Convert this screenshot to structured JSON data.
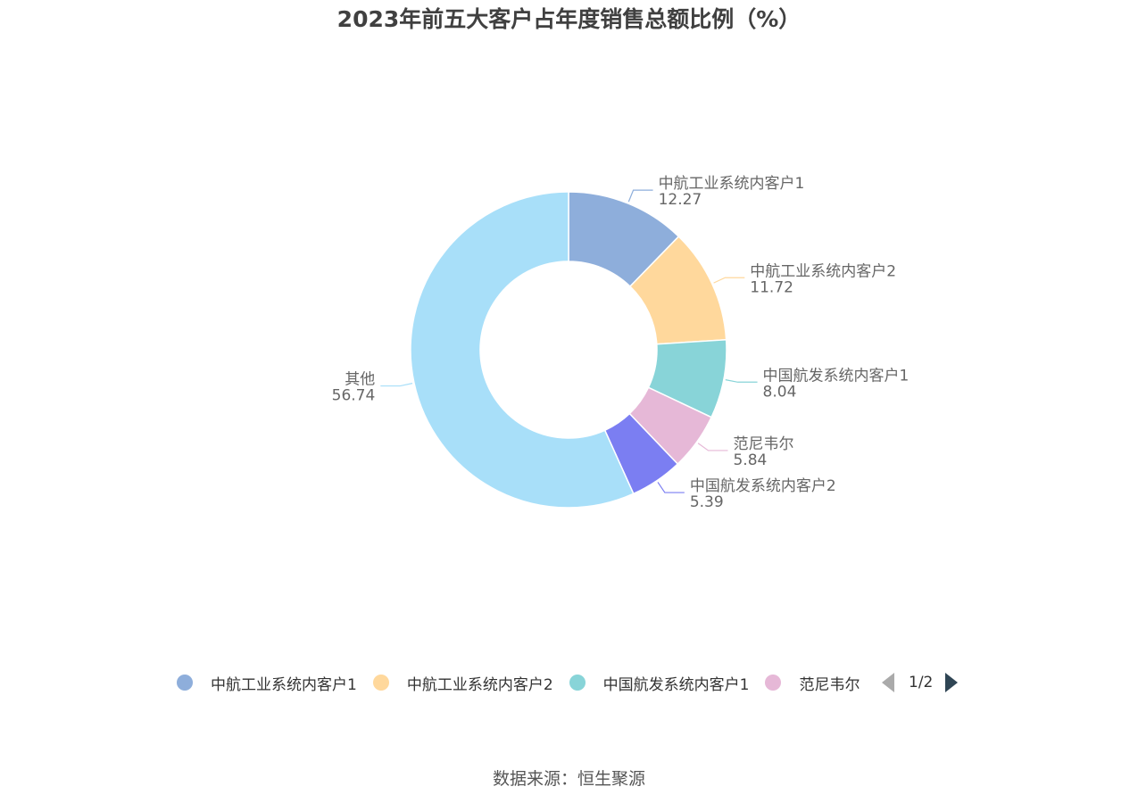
{
  "title": "2023年前五大客户占年度销售总额比例（%）",
  "source": "数据来源：恒生聚源",
  "pager": {
    "text": "1/2",
    "prev": "arrow-left-icon",
    "next": "arrow-right-icon"
  },
  "legend": {
    "items": [
      {
        "label": "中航工业系统内客户1",
        "color": "#8eaedb"
      },
      {
        "label": "中航工业系统内客户2",
        "color": "#ffd89c"
      },
      {
        "label": "中国航发系统内客户1",
        "color": "#88d4d8"
      },
      {
        "label": "范尼韦尔",
        "color": "#e6b8d7"
      }
    ]
  },
  "chart_data": {
    "type": "pie",
    "donut": true,
    "title": "2023年前五大客户占年度销售总额比例（%）",
    "slices": [
      {
        "name": "中航工业系统内客户1",
        "value": 12.27,
        "label": "12.27",
        "color": "#8eaedb"
      },
      {
        "name": "中航工业系统内客户2",
        "value": 11.72,
        "label": "11.72",
        "color": "#ffd89c"
      },
      {
        "name": "中国航发系统内客户1",
        "value": 8.04,
        "label": "8.04",
        "color": "#88d4d8"
      },
      {
        "name": "范尼韦尔",
        "value": 5.84,
        "label": "5.84",
        "color": "#e6b8d7"
      },
      {
        "name": "中国航发系统内客户2",
        "value": 5.39,
        "label": "5.39",
        "color": "#7b7ef2"
      },
      {
        "name": "其他",
        "value": 56.74,
        "label": "56.74",
        "color": "#a8dff9"
      }
    ]
  }
}
